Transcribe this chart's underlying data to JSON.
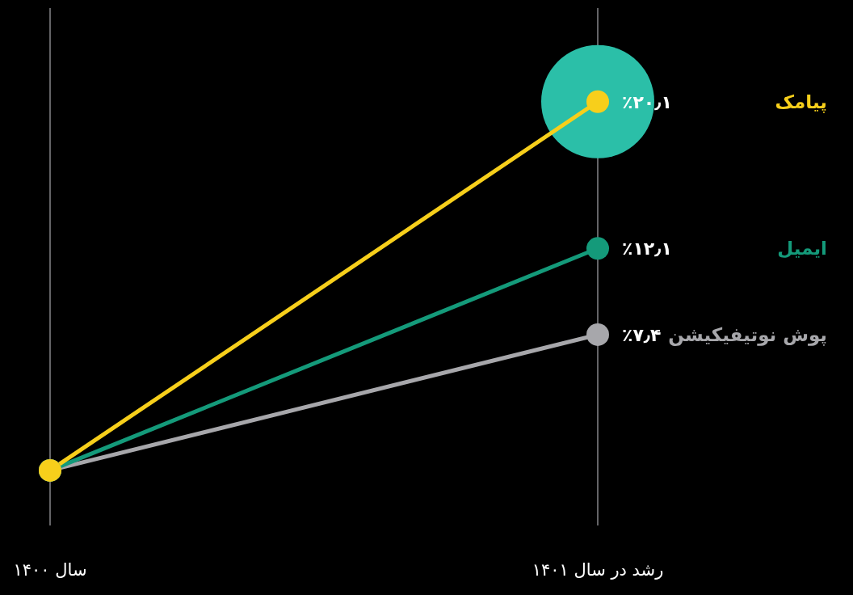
{
  "chart_data": {
    "type": "line",
    "categories": [
      "سال ۱۴۰۰",
      "رشد در سال ۱۴۰۱"
    ],
    "series": [
      {
        "name": "پیامک",
        "color": "#f7cf1b",
        "values": [
          0,
          20.1
        ],
        "value_labels": [
          null,
          "٪۲۰٫۱"
        ]
      },
      {
        "name": "ایمیل",
        "color": "#149a7a",
        "values": [
          0,
          12.1
        ],
        "value_labels": [
          null,
          "٪۱۲٫۱"
        ]
      },
      {
        "name": "پوش نوتیفیکیشن",
        "color": "#a7a7ab",
        "values": [
          0,
          7.4
        ],
        "value_labels": [
          null,
          "٪۷٫۴"
        ]
      }
    ],
    "ylim": [
      -3,
      25.2
    ],
    "grid": "x",
    "marker": "circle",
    "line_style": "solid",
    "tick_labels": "x"
  }
}
